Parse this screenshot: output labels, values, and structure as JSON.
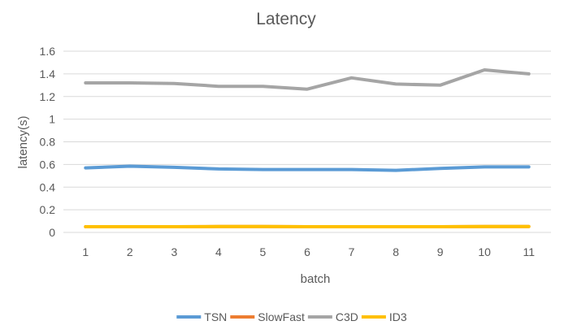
{
  "chart_data": {
    "type": "line",
    "title": "Latency",
    "xlabel": "batch",
    "ylabel": "latency(s)",
    "categories": [
      "1",
      "2",
      "3",
      "4",
      "5",
      "6",
      "7",
      "8",
      "9",
      "10",
      "11"
    ],
    "ylim": [
      0,
      1.6
    ],
    "yticks": [
      "0",
      "0.2",
      "0.4",
      "0.6",
      "0.8",
      "1",
      "1.2",
      "1.4",
      "1.6"
    ],
    "grid": true,
    "legend_position": "bottom",
    "series": [
      {
        "name": "TSN",
        "color": "#5b9bd5",
        "values": [
          0.57,
          0.585,
          0.575,
          0.56,
          0.555,
          0.555,
          0.555,
          0.548,
          0.565,
          0.578,
          0.578
        ]
      },
      {
        "name": "SlowFast",
        "color": "#ed7d31",
        "values": [
          0.05,
          0.05,
          0.05,
          0.052,
          0.052,
          0.05,
          0.05,
          0.05,
          0.05,
          0.052,
          0.052
        ]
      },
      {
        "name": "C3D",
        "color": "#a5a5a5",
        "values": [
          1.32,
          1.32,
          1.315,
          1.29,
          1.29,
          1.265,
          1.365,
          1.31,
          1.3,
          1.435,
          1.4
        ]
      },
      {
        "name": "ID3",
        "color": "#ffc000",
        "values": [
          0.05,
          0.05,
          0.05,
          0.052,
          0.052,
          0.05,
          0.05,
          0.05,
          0.05,
          0.052,
          0.052
        ]
      }
    ]
  }
}
